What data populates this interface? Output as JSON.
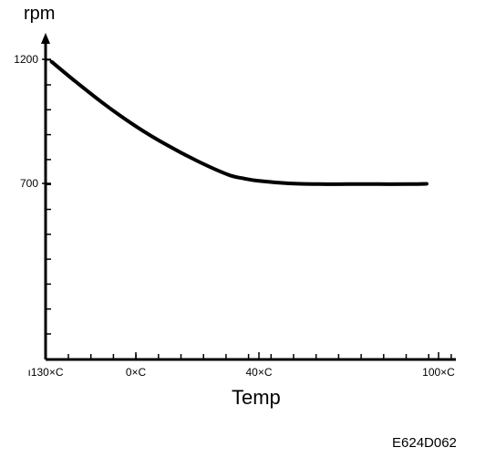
{
  "figure_code": "E624D062",
  "chart_data": {
    "type": "line",
    "title": "",
    "xlabel": "Temp",
    "ylabel": "rpm",
    "x_ticks": [
      {
        "value": -30,
        "label": "ı130×C"
      },
      {
        "value": 0,
        "label": "0×C"
      },
      {
        "value": 40,
        "label": "40×C"
      },
      {
        "value": 100,
        "label": "100×C"
      }
    ],
    "y_ticks": [
      {
        "value": 1200,
        "label": "1200"
      },
      {
        "value": 700,
        "label": "700"
      }
    ],
    "xlim": [
      -30,
      100
    ],
    "ylim": [
      0,
      1350
    ],
    "grid": false,
    "series": [
      {
        "x": [
          -28,
          -20,
          -10,
          0,
          10,
          20,
          30,
          35,
          40,
          50,
          60,
          70,
          80,
          90,
          96
        ],
        "y": [
          1190,
          1110,
          1015,
          930,
          855,
          790,
          735,
          720,
          710,
          700,
          697,
          697,
          697,
          697,
          698
        ]
      }
    ]
  }
}
